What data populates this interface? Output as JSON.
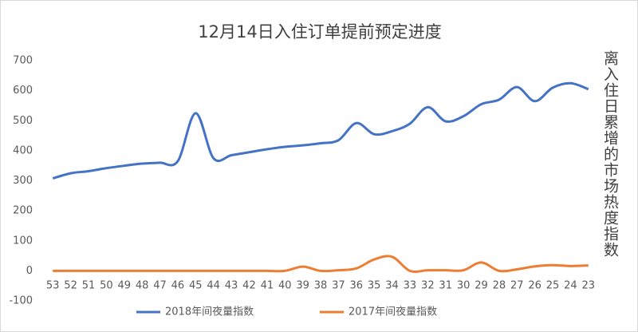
{
  "chart_data": {
    "type": "line",
    "title": "12月14日入住订单提前预定进度",
    "y_axis_label": "离入住日累增的市场热度指数",
    "categories": [
      "53",
      "52",
      "51",
      "50",
      "49",
      "48",
      "47",
      "46",
      "45",
      "44",
      "43",
      "42",
      "41",
      "40",
      "39",
      "38",
      "37",
      "36",
      "35",
      "34",
      "33",
      "32",
      "31",
      "30",
      "29",
      "28",
      "27",
      "26",
      "25",
      "24",
      "23"
    ],
    "series": [
      {
        "name": "2018年间夜量指数",
        "color": "#4472c4",
        "values": [
          308,
          325,
          332,
          342,
          350,
          357,
          360,
          365,
          525,
          375,
          385,
          395,
          405,
          413,
          418,
          425,
          435,
          492,
          455,
          465,
          490,
          545,
          498,
          515,
          555,
          570,
          612,
          565,
          610,
          625,
          605
        ]
      },
      {
        "name": "2017年间夜量指数",
        "color": "#ed7d31",
        "values": [
          0,
          0,
          0,
          0,
          0,
          0,
          0,
          0,
          0,
          0,
          0,
          0,
          0,
          0,
          14,
          0,
          2,
          8,
          38,
          47,
          0,
          2,
          2,
          2,
          28,
          0,
          5,
          15,
          19,
          16,
          18
        ]
      }
    ],
    "ylim": [
      -100,
      700
    ],
    "yticks": [
      -100,
      0,
      100,
      200,
      300,
      400,
      500,
      600,
      700
    ],
    "grid": false,
    "legend": "bottom"
  }
}
